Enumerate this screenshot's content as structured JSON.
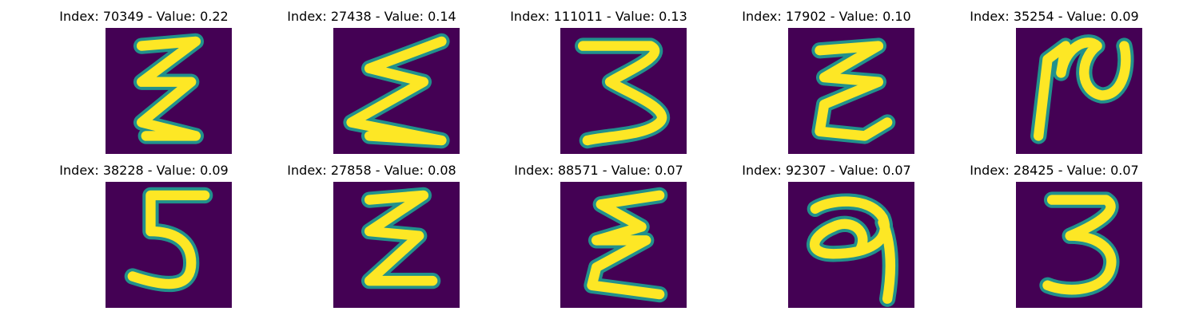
{
  "colors": {
    "background": "#440154",
    "mid": "#21918c",
    "foreground": "#fde725"
  },
  "panels": [
    {
      "title": "Index: 70349 - Value: 0.22",
      "glyph": "sigma-like"
    },
    {
      "title": "Index: 27438 - Value: 0.14",
      "glyph": "sigma-like"
    },
    {
      "title": "Index: 111011 - Value: 0.13",
      "glyph": "three-like"
    },
    {
      "title": "Index: 17902 - Value: 0.10",
      "glyph": "sigma-like"
    },
    {
      "title": "Index: 35254 - Value: 0.09",
      "glyph": "n-like"
    },
    {
      "title": "Index: 38228 - Value: 0.09",
      "glyph": "five"
    },
    {
      "title": "Index: 27858 - Value: 0.08",
      "glyph": "sigma-like"
    },
    {
      "title": "Index: 88571 - Value: 0.07",
      "glyph": "sigma-like"
    },
    {
      "title": "Index: 92307 - Value: 0.07",
      "glyph": "nine-like"
    },
    {
      "title": "Index: 28425 - Value: 0.07",
      "glyph": "three"
    }
  ]
}
